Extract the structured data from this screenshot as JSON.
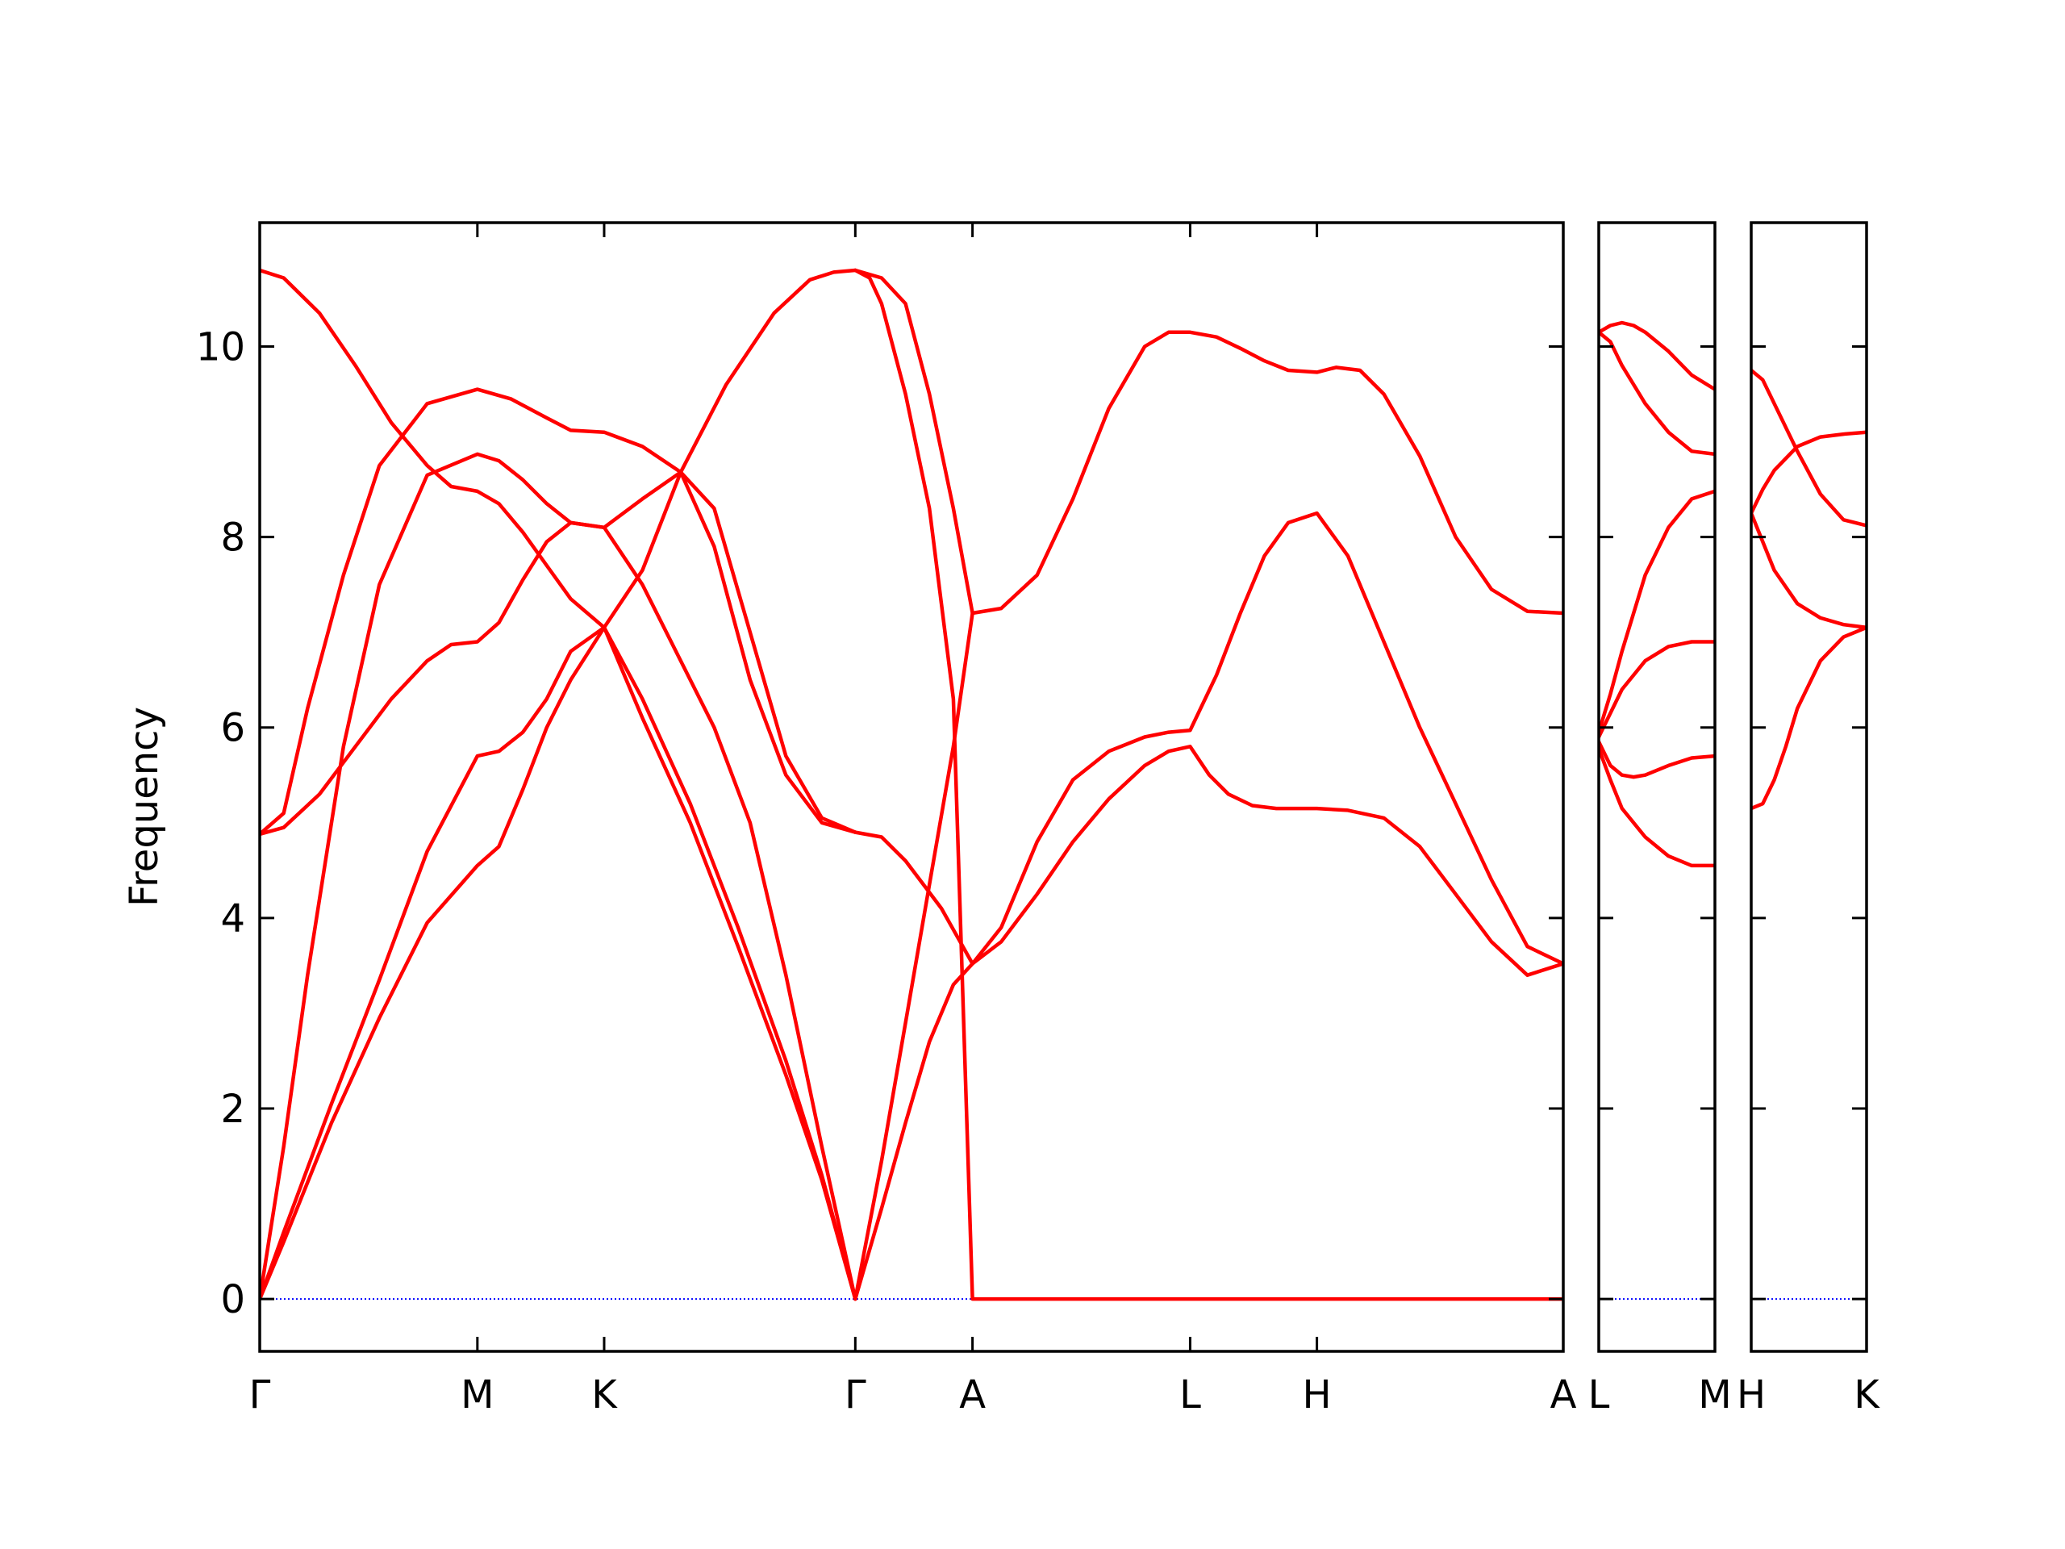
{
  "chart_data": {
    "type": "line",
    "ylabel": "Frequency",
    "ylim": [
      -0.55,
      11.3
    ],
    "yticks": [
      0,
      2,
      4,
      6,
      8,
      10
    ],
    "line_color": "#ff0000",
    "zero_line_color": "#0000ff",
    "grid": false,
    "panels": [
      {
        "xlim": [
          0,
          5.45
        ],
        "ticks": [
          {
            "x": 0,
            "label": "Γ"
          },
          {
            "x": 0.91,
            "label": "M"
          },
          {
            "x": 1.44,
            "label": "K"
          },
          {
            "x": 2.49,
            "label": "Γ"
          },
          {
            "x": 2.98,
            "label": "A"
          },
          {
            "x": 3.89,
            "label": "L"
          },
          {
            "x": 4.42,
            "label": "H"
          },
          {
            "x": 5.45,
            "label": "A"
          }
        ],
        "series": [
          {
            "x": [
              0,
              0.1,
              0.3,
              0.5,
              0.7,
              0.91,
              1.0,
              1.1,
              1.2,
              1.3,
              1.44,
              1.6,
              1.8,
              2.0,
              2.2,
              2.35,
              2.49
            ],
            "y": [
              0,
              0.6,
              1.85,
              2.95,
              3.95,
              4.55,
              4.75,
              5.35,
              6.0,
              6.5,
              7.05,
              6.3,
              5.2,
              3.9,
              2.5,
              1.3,
              0
            ]
          },
          {
            "x": [
              0,
              0.1,
              0.3,
              0.5,
              0.7,
              0.91,
              1.0,
              1.1,
              1.2,
              1.3,
              1.44,
              1.6,
              1.8,
              2.0,
              2.2,
              2.35,
              2.49
            ],
            "y": [
              0,
              0.7,
              2.05,
              3.35,
              4.7,
              5.7,
              5.75,
              5.95,
              6.3,
              6.8,
              7.05,
              6.1,
              5.0,
              3.7,
              2.35,
              1.25,
              0
            ]
          },
          {
            "x": [
              0,
              0.1,
              0.25,
              0.4,
              0.55,
              0.7,
              0.8,
              0.91,
              1.0,
              1.1,
              1.2,
              1.3,
              1.44,
              1.6,
              1.76,
              1.9,
              2.05,
              2.2,
              2.35,
              2.49
            ],
            "y": [
              4.88,
              4.95,
              5.3,
              5.8,
              6.3,
              6.7,
              6.87,
              6.9,
              7.1,
              7.55,
              7.95,
              8.15,
              8.1,
              7.5,
              6.7,
              6.0,
              5.0,
              3.4,
              1.6,
              0
            ]
          },
          {
            "x": [
              0,
              0.1,
              0.2,
              0.35,
              0.5,
              0.7,
              0.91,
              1.0,
              1.1,
              1.2,
              1.3,
              1.44,
              1.6,
              1.76,
              1.9,
              2.05,
              2.2,
              2.35,
              2.49
            ],
            "y": [
              0,
              1.6,
              3.4,
              5.8,
              7.5,
              8.65,
              8.87,
              8.8,
              8.6,
              8.35,
              8.15,
              8.1,
              8.4,
              8.68,
              8.3,
              7.0,
              5.7,
              5.05,
              4.9
            ]
          },
          {
            "x": [
              0,
              0.1,
              0.2,
              0.35,
              0.5,
              0.7,
              0.91,
              1.05,
              1.2,
              1.3,
              1.44,
              1.6,
              1.76,
              1.9,
              2.05,
              2.2,
              2.35,
              2.49
            ],
            "y": [
              4.88,
              5.1,
              6.2,
              7.6,
              8.75,
              9.4,
              9.55,
              9.45,
              9.25,
              9.12,
              9.1,
              8.95,
              8.68,
              7.9,
              6.5,
              5.5,
              5.0,
              4.9
            ]
          },
          {
            "x": [
              0,
              0.1,
              0.25,
              0.4,
              0.55,
              0.7,
              0.8,
              0.91,
              1.0,
              1.1,
              1.2,
              1.3,
              1.44,
              1.6,
              1.76,
              1.95,
              2.15,
              2.3,
              2.4,
              2.49
            ],
            "y": [
              10.8,
              10.72,
              10.35,
              9.8,
              9.2,
              8.75,
              8.53,
              8.48,
              8.35,
              8.05,
              7.7,
              7.35,
              7.05,
              7.65,
              8.68,
              9.6,
              10.35,
              10.7,
              10.78,
              10.8
            ]
          },
          {
            "x": [
              2.49,
              2.6,
              2.7,
              2.8,
              2.9,
              2.98,
              3.1,
              3.25,
              3.4,
              3.55,
              3.7,
              3.8,
              3.89,
              3.97,
              4.05,
              4.15,
              4.25,
              4.35,
              4.42,
              4.55,
              4.7,
              4.85,
              5.0,
              5.15,
              5.3,
              5.45
            ],
            "y": [
              0,
              0.95,
              1.85,
              2.7,
              3.3,
              3.52,
              3.75,
              4.25,
              4.8,
              5.25,
              5.6,
              5.75,
              5.8,
              5.5,
              5.3,
              5.18,
              5.15,
              5.15,
              5.15,
              5.13,
              5.05,
              4.75,
              4.25,
              3.75,
              3.4,
              3.52
            ]
          },
          {
            "x": [
              2.49,
              2.6,
              2.7,
              2.85,
              2.98,
              3.1,
              3.25,
              3.4,
              3.55,
              3.7,
              3.8,
              3.89,
              4.0,
              4.1,
              4.2,
              4.3,
              4.42,
              4.55,
              4.7,
              4.85,
              5.0,
              5.15,
              5.3,
              5.45
            ],
            "y": [
              4.9,
              4.85,
              4.6,
              4.1,
              3.52,
              3.9,
              4.8,
              5.45,
              5.75,
              5.9,
              5.95,
              5.97,
              6.55,
              7.2,
              7.8,
              8.15,
              8.25,
              7.8,
              6.9,
              6.0,
              5.2,
              4.4,
              3.7,
              3.52
            ]
          },
          {
            "x": [
              2.49,
              2.55,
              2.6,
              2.7,
              2.8,
              2.9,
              2.98,
              3.1,
              3.25,
              3.4,
              3.55,
              3.7,
              3.8,
              3.89,
              4.0,
              4.1,
              4.2,
              4.3,
              4.42,
              4.5,
              4.6,
              4.7,
              4.85,
              5.0,
              5.15,
              5.3,
              5.45
            ],
            "y": [
              10.8,
              10.72,
              10.45,
              9.5,
              8.3,
              6.3,
              0,
              0,
              0,
              0,
              0,
              0,
              0,
              0,
              0,
              0,
              0,
              0,
              0,
              0,
              0,
              0,
              0,
              0,
              0,
              0,
              0
            ]
          },
          {
            "x": [
              2.49,
              2.6,
              2.7,
              2.8,
              2.9,
              2.98,
              3.1,
              3.25,
              3.4,
              3.55,
              3.7,
              3.8,
              3.89,
              4.0,
              4.1,
              4.2,
              4.3,
              4.42,
              4.5,
              4.6,
              4.7,
              4.85,
              5.0,
              5.15,
              5.3,
              5.45
            ],
            "y": [
              10.8,
              10.72,
              10.45,
              9.5,
              8.3,
              7.2,
              7.25,
              7.6,
              8.4,
              9.35,
              10.0,
              10.15,
              10.15,
              10.1,
              9.98,
              9.85,
              9.75,
              9.73,
              9.78,
              9.75,
              9.5,
              8.85,
              8.0,
              7.45,
              7.22,
              7.2
            ]
          },
          {
            "x": [
              2.49,
              2.6,
              2.7,
              2.8,
              2.9,
              2.98
            ],
            "y": [
              0,
              1.45,
              2.9,
              4.35,
              5.8,
              7.2
            ]
          }
        ]
      },
      {
        "xlim": [
          0,
          0.5
        ],
        "ticks": [
          {
            "x": 0,
            "label": "L"
          },
          {
            "x": 0.5,
            "label": "M"
          }
        ],
        "series": [
          {
            "x": [
              0,
              0.05,
              0.1,
              0.2,
              0.3,
              0.4,
              0.5
            ],
            "y": [
              5.78,
              5.45,
              5.15,
              4.85,
              4.65,
              4.55,
              4.55
            ]
          },
          {
            "x": [
              0,
              0.05,
              0.1,
              0.15,
              0.2,
              0.3,
              0.4,
              0.5
            ],
            "y": [
              5.85,
              5.6,
              5.5,
              5.48,
              5.5,
              5.6,
              5.68,
              5.7
            ]
          },
          {
            "x": [
              0,
              0.05,
              0.1,
              0.2,
              0.3,
              0.4,
              0.5
            ],
            "y": [
              5.9,
              6.15,
              6.4,
              6.7,
              6.85,
              6.9,
              6.9
            ]
          },
          {
            "x": [
              0,
              0.05,
              0.1,
              0.2,
              0.3,
              0.4,
              0.5
            ],
            "y": [
              5.95,
              6.35,
              6.8,
              7.6,
              8.1,
              8.4,
              8.48
            ]
          },
          {
            "x": [
              0,
              0.05,
              0.1,
              0.2,
              0.3,
              0.4,
              0.5
            ],
            "y": [
              10.15,
              10.05,
              9.8,
              9.4,
              9.1,
              8.9,
              8.87
            ]
          },
          {
            "x": [
              0,
              0.05,
              0.1,
              0.15,
              0.2,
              0.3,
              0.4,
              0.5
            ],
            "y": [
              10.15,
              10.22,
              10.25,
              10.22,
              10.15,
              9.95,
              9.7,
              9.55
            ]
          }
        ]
      },
      {
        "xlim": [
          0,
          0.5
        ],
        "ticks": [
          {
            "x": 0,
            "label": "H"
          },
          {
            "x": 0.5,
            "label": "K"
          }
        ],
        "series": [
          {
            "x": [
              0,
              0.05,
              0.1,
              0.15,
              0.2,
              0.3,
              0.4,
              0.5
            ],
            "y": [
              5.15,
              5.2,
              5.45,
              5.8,
              6.2,
              6.7,
              6.95,
              7.05
            ]
          },
          {
            "x": [
              0,
              0.05,
              0.1,
              0.2,
              0.3,
              0.4,
              0.5
            ],
            "y": [
              8.25,
              7.95,
              7.65,
              7.3,
              7.15,
              7.08,
              7.05
            ]
          },
          {
            "x": [
              0,
              0.05,
              0.1,
              0.2,
              0.3,
              0.4,
              0.5
            ],
            "y": [
              8.25,
              8.5,
              8.7,
              8.95,
              9.05,
              9.08,
              9.1
            ]
          },
          {
            "x": [
              0,
              0.05,
              0.1,
              0.2,
              0.3,
              0.4,
              0.5
            ],
            "y": [
              9.75,
              9.65,
              9.4,
              8.9,
              8.45,
              8.18,
              8.12
            ]
          }
        ]
      }
    ]
  }
}
